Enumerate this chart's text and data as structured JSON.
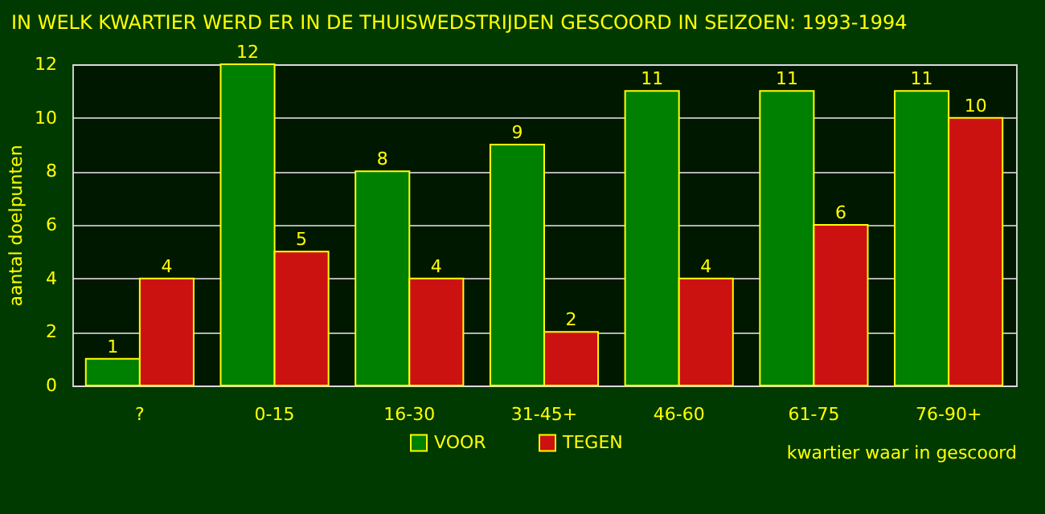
{
  "chart_data": {
    "type": "bar",
    "title": "IN WELK KWARTIER WERD ER IN DE THUISWEDSTRIJDEN GESCOORD IN SEIZOEN: 1993-1994",
    "xlabel": "kwartier waar in gescoord",
    "ylabel": "aantal doelpunten",
    "categories": [
      "?",
      "0-15",
      "16-30",
      "31-45+",
      "46-60",
      "61-75",
      "76-90+"
    ],
    "series": [
      {
        "name": "VOOR",
        "color": "#008000",
        "values": [
          1,
          12,
          8,
          9,
          11,
          11,
          11
        ]
      },
      {
        "name": "TEGEN",
        "color": "#cc1111",
        "values": [
          4,
          5,
          4,
          2,
          4,
          6,
          10
        ]
      }
    ],
    "ylim": [
      0,
      12
    ],
    "yticks": [
      0,
      2,
      4,
      6,
      8,
      10,
      12
    ],
    "grid": "y",
    "legend": "bottom",
    "data_labels": true
  }
}
